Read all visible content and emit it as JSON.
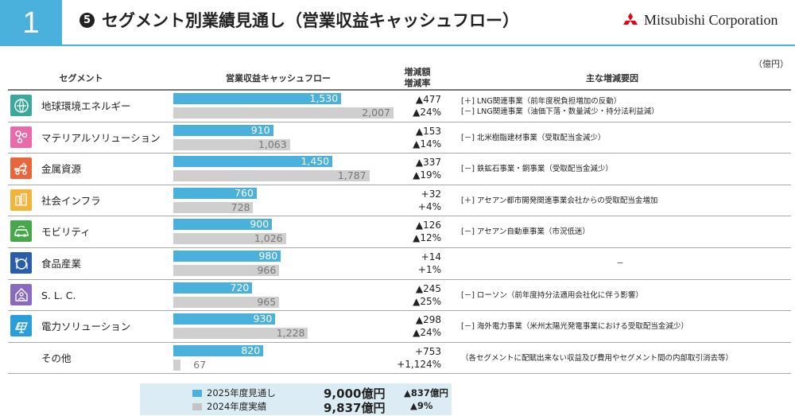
{
  "page_number": "1",
  "title_number": "5",
  "title": "セグメント別業績見通し（営業収益キャッシュフロー）",
  "logo_text": "Mitsubishi Corporation",
  "unit_label": "（億円）",
  "columns": {
    "segment": "セグメント",
    "chart": "営業収益キャッシュフロー",
    "change_line1": "増減額",
    "change_line2": "増減率",
    "reasons": "主な増減要因"
  },
  "legend": {
    "current": "2025年度見通し",
    "previous": "2024年度実績"
  },
  "totals": {
    "current": "9,000億円",
    "previous": "9,837億円",
    "change_amount": "▲837億円",
    "change_rate": "▲9%"
  },
  "colors": {
    "accent": "#4ab0dc",
    "current_bar": "#4ab0dc",
    "previous_bar": "#cfcfcf"
  },
  "chart_data": {
    "type": "bar",
    "orientation": "horizontal",
    "title": "営業収益キャッシュフロー",
    "categories": [
      "地球環境エネルギー",
      "マテリアルソリューション",
      "金属資源",
      "社会インフラ",
      "モビリティ",
      "食品産業",
      "S. L. C.",
      "電力ソリューション",
      "その他"
    ],
    "series": [
      {
        "name": "2025年度見通し",
        "values": [
          1530,
          910,
          1450,
          760,
          900,
          980,
          720,
          930,
          820
        ],
        "labels": [
          "1,530",
          "910",
          "1,450",
          "760",
          "900",
          "980",
          "720",
          "930",
          "820"
        ]
      },
      {
        "name": "2024年度実績",
        "values": [
          2007,
          1063,
          1787,
          728,
          1026,
          966,
          965,
          1228,
          67
        ],
        "labels": [
          "2,007",
          "1,063",
          "1,787",
          "728",
          "1,026",
          "966",
          "965",
          "1,228",
          "67"
        ]
      }
    ],
    "xlim": [
      0,
      2007
    ]
  },
  "segments": [
    {
      "name": "地球環境エネルギー",
      "icon": "energy-plant-icon",
      "color": "#3aa89a",
      "change_amount": "▲477",
      "change_rate": "▲24%",
      "reasons": [
        "[＋] LNG関連事業（前年度税負担増加の反動）",
        "[－] LNG関連事業（油価下落・数量減少・持分法利益減）"
      ]
    },
    {
      "name": "マテリアルソリューション",
      "icon": "molecule-icon",
      "color": "#e86aa8",
      "change_amount": "▲153",
      "change_rate": "▲14%",
      "reasons": [
        "[－] 北米樹脂建材事業（受取配当金減少）"
      ]
    },
    {
      "name": "金属資源",
      "icon": "mining-truck-icon",
      "color": "#e8663c",
      "change_amount": "▲337",
      "change_rate": "▲19%",
      "reasons": [
        "[－] 鉄鉱石事業・銅事業（受取配当金減少）"
      ]
    },
    {
      "name": "社会インフラ",
      "icon": "buildings-icon",
      "color": "#f0b43a",
      "change_amount": "+32",
      "change_rate": "+4%",
      "reasons": [
        "[＋] アセアン都市開発関連事業会社からの受取配当金増加"
      ]
    },
    {
      "name": "モビリティ",
      "icon": "car-icon",
      "color": "#46a84a",
      "change_amount": "▲126",
      "change_rate": "▲12%",
      "reasons": [
        "[－] アセアン自動車事業（市況低迷）"
      ]
    },
    {
      "name": "食品産業",
      "icon": "dish-icon",
      "color": "#2a5ea8",
      "change_amount": "+14",
      "change_rate": "+1%",
      "reasons": [
        "－"
      ]
    },
    {
      "name": "S. L. C.",
      "icon": "home-person-icon",
      "color": "#8a6ac0",
      "change_amount": "▲245",
      "change_rate": "▲25%",
      "reasons": [
        "[－] ローソン（前年度持分法適用会社化に伴う影響）"
      ]
    },
    {
      "name": "電力ソリューション",
      "icon": "solar-panel-icon",
      "color": "#2a9ed8",
      "change_amount": "▲298",
      "change_rate": "▲24%",
      "reasons": [
        "[－] 海外電力事業（米州太陽光発電事業における受取配当金減少）"
      ]
    },
    {
      "name": "その他",
      "icon": "",
      "color": "",
      "change_amount": "+753",
      "change_rate": "+1,124%",
      "reasons": [
        "（各セグメントに配賦出来ない収益及び費用やセグメント間の内部取引消去等）"
      ]
    }
  ]
}
